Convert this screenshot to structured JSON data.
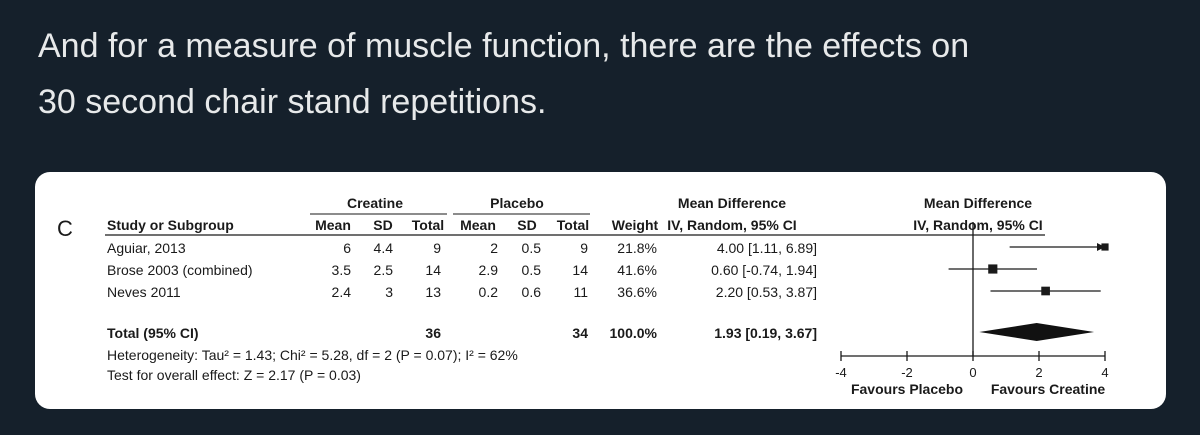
{
  "tweet": {
    "line1": "And for a measure of muscle function, there are the effects on",
    "line2": "30 second chair stand repetitions."
  },
  "forest_plot": {
    "panel_label": "C",
    "group1": "Creatine",
    "group2": "Placebo",
    "md_header": "Mean Difference",
    "md_subheader": "IV, Random, 95% CI",
    "plot_header": "Mean Difference",
    "plot_subheader": "IV, Random, 95% CI",
    "columns": {
      "study": "Study or Subgroup",
      "mean1": "Mean",
      "sd1": "SD",
      "total1": "Total",
      "mean2": "Mean",
      "sd2": "SD",
      "total2": "Total",
      "weight": "Weight"
    },
    "studies": [
      {
        "name": "Aguiar, 2013",
        "mean1": "6",
        "sd1": "4.4",
        "total1": "9",
        "mean2": "2",
        "sd2": "0.5",
        "total2": "9",
        "weight": "21.8%",
        "ci": "4.00 [1.11, 6.89]"
      },
      {
        "name": "Brose 2003 (combined)",
        "mean1": "3.5",
        "sd1": "2.5",
        "total1": "14",
        "mean2": "2.9",
        "sd2": "0.5",
        "total2": "14",
        "weight": "41.6%",
        "ci": "0.60 [-0.74, 1.94]"
      },
      {
        "name": "Neves 2011",
        "mean1": "2.4",
        "sd1": "3",
        "total1": "13",
        "mean2": "0.2",
        "sd2": "0.6",
        "total2": "11",
        "weight": "36.6%",
        "ci": "2.20 [0.53, 3.87]"
      }
    ],
    "total": {
      "label": "Total (95% CI)",
      "total1": "36",
      "total2": "34",
      "weight": "100.0%",
      "ci": "1.93 [0.19, 3.67]"
    },
    "heterogeneity": "Heterogeneity: Tau² = 1.43; Chi² = 5.28, df = 2 (P = 0.07); I² = 62%",
    "overall_effect": "Test for overall effect: Z = 2.17 (P = 0.03)",
    "axis_ticks": [
      "-4",
      "-2",
      "0",
      "2",
      "4"
    ],
    "favours_left": "Favours Placebo",
    "favours_right": "Favours Creatine"
  },
  "chart_data": {
    "type": "scatter",
    "x_range": [
      -4,
      4
    ],
    "x_ticks": [
      -4,
      -2,
      0,
      2,
      4
    ],
    "studies": [
      {
        "name": "Aguiar, 2013",
        "md": 4.0,
        "lo": 1.11,
        "hi": 6.89,
        "weight": 21.8
      },
      {
        "name": "Brose 2003 (combined)",
        "md": 0.6,
        "lo": -0.74,
        "hi": 1.94,
        "weight": 41.6
      },
      {
        "name": "Neves 2011",
        "md": 2.2,
        "lo": 0.53,
        "hi": 3.87,
        "weight": 36.6
      }
    ],
    "pooled": {
      "md": 1.93,
      "lo": 0.19,
      "hi": 3.67
    }
  }
}
